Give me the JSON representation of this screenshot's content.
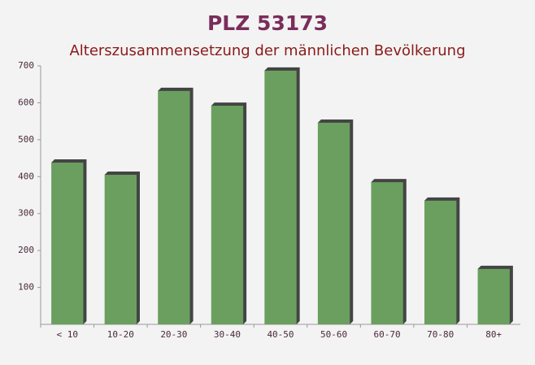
{
  "chart_data": {
    "type": "bar",
    "title": "PLZ 53173",
    "subtitle": "Alterszusammensetzung der männlichen Bevölkerung",
    "categories": [
      "< 10",
      "10-20",
      "20-30",
      "30-40",
      "40-50",
      "50-60",
      "60-70",
      "70-80",
      "80+"
    ],
    "values": [
      438,
      405,
      632,
      592,
      687,
      546,
      385,
      335,
      150
    ],
    "color": "#6a9f5f",
    "ylim": [
      0,
      700
    ],
    "yticks": [
      100,
      200,
      300,
      400,
      500,
      600,
      700
    ]
  }
}
